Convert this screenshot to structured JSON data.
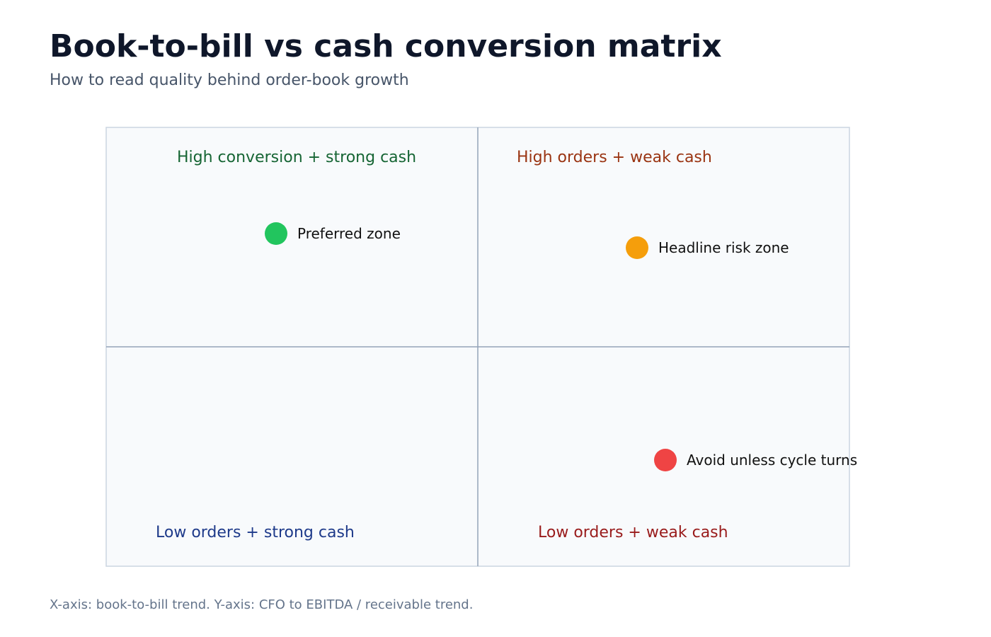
{
  "title": "Book-to-bill vs cash conversion matrix",
  "subtitle": "How to read quality behind order-book growth",
  "quadrants": {
    "top_left": {
      "label": "High conversion + strong cash",
      "color": "#166534"
    },
    "top_right": {
      "label": "High orders + weak cash",
      "color": "#9a3412"
    },
    "bottom_left": {
      "label": "Low orders + strong cash",
      "color": "#1e3a8a"
    },
    "bottom_right": {
      "label": "Low orders + weak cash",
      "color": "#991b1b"
    }
  },
  "points": [
    {
      "label": "Preferred zone",
      "color": "#22c55e"
    },
    {
      "label": "Headline risk zone",
      "color": "#f59e0b"
    },
    {
      "label": "Avoid unless cycle turns",
      "color": "#ef4444"
    }
  ],
  "footnote": "X-axis: book-to-bill trend. Y-axis: CFO to EBITDA / receivable trend.",
  "colors": {
    "title": "#0f172a",
    "subtitle": "#475569",
    "footnote": "#64748b",
    "panel_fill": "#f8fafc",
    "panel_border": "#cbd5e1",
    "divider": "#94a3b8"
  }
}
